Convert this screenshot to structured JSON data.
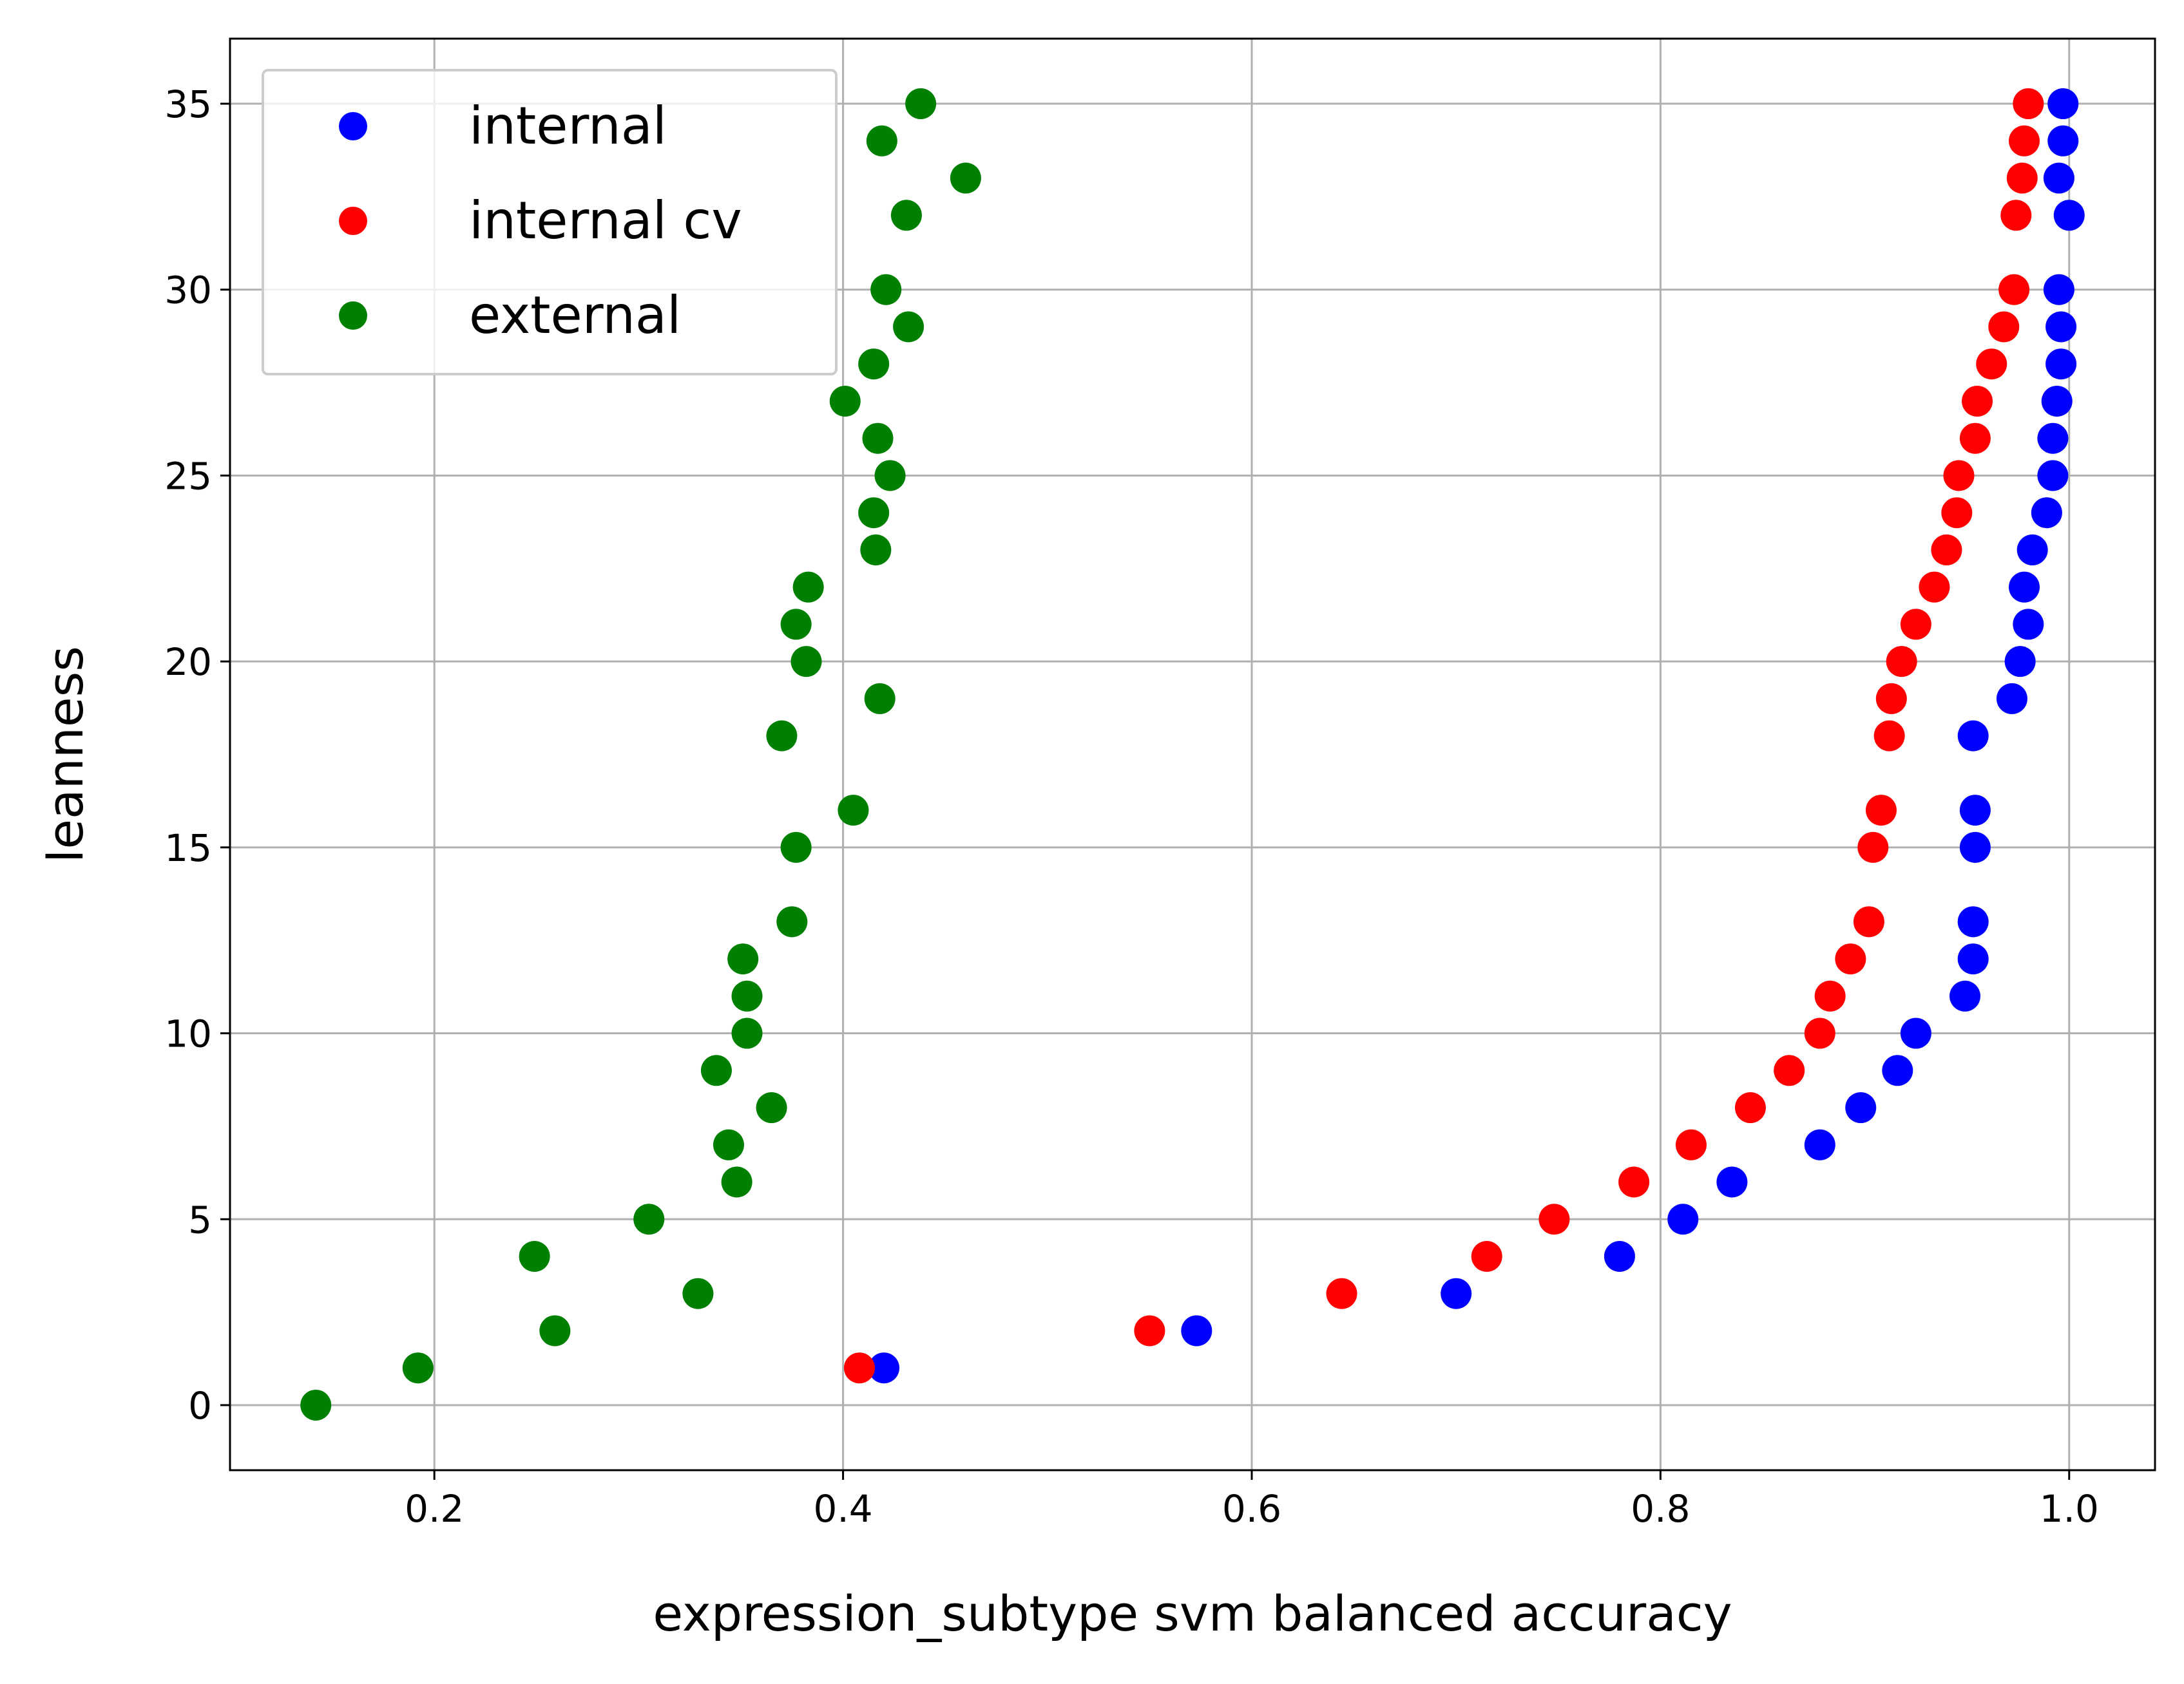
{
  "chart_data": {
    "type": "scatter",
    "xlabel": "expression_subtype svm balanced accuracy",
    "ylabel": "leanness",
    "xlim": [
      0.1,
      1.042
    ],
    "ylim": [
      -1.75,
      36.75
    ],
    "x_ticks": [
      0.2,
      0.4,
      0.6,
      0.8,
      1.0
    ],
    "x_tick_labels": [
      "0.2",
      "0.4",
      "0.6",
      "0.8",
      "1.0"
    ],
    "y_ticks": [
      0,
      5,
      10,
      15,
      20,
      25,
      30,
      35
    ],
    "y_tick_labels": [
      "0",
      "5",
      "10",
      "15",
      "20",
      "25",
      "30",
      "35"
    ],
    "grid": true,
    "legend_position": "upper left",
    "series": [
      {
        "name": "internal",
        "color": "#0000ff",
        "points": [
          [
            0.42,
            1
          ],
          [
            0.573,
            2
          ],
          [
            0.7,
            3
          ],
          [
            0.78,
            4
          ],
          [
            0.811,
            5
          ],
          [
            0.835,
            6
          ],
          [
            0.878,
            7
          ],
          [
            0.898,
            8
          ],
          [
            0.916,
            9
          ],
          [
            0.925,
            10
          ],
          [
            0.949,
            11
          ],
          [
            0.953,
            12
          ],
          [
            0.953,
            13
          ],
          [
            0.954,
            15
          ],
          [
            0.954,
            16
          ],
          [
            0.953,
            18
          ],
          [
            0.972,
            19
          ],
          [
            0.976,
            20
          ],
          [
            0.98,
            21
          ],
          [
            0.978,
            22
          ],
          [
            0.982,
            23
          ],
          [
            0.989,
            24
          ],
          [
            0.992,
            25
          ],
          [
            0.992,
            26
          ],
          [
            0.994,
            27
          ],
          [
            0.996,
            28
          ],
          [
            0.996,
            29
          ],
          [
            0.995,
            30
          ],
          [
            1.0,
            32
          ],
          [
            0.995,
            33
          ],
          [
            0.997,
            34
          ],
          [
            0.997,
            35
          ]
        ]
      },
      {
        "name": "internal cv",
        "color": "#ff0000",
        "points": [
          [
            0.408,
            1
          ],
          [
            0.55,
            2
          ],
          [
            0.644,
            3
          ],
          [
            0.715,
            4
          ],
          [
            0.748,
            5
          ],
          [
            0.787,
            6
          ],
          [
            0.815,
            7
          ],
          [
            0.844,
            8
          ],
          [
            0.863,
            9
          ],
          [
            0.878,
            10
          ],
          [
            0.883,
            11
          ],
          [
            0.893,
            12
          ],
          [
            0.902,
            13
          ],
          [
            0.904,
            15
          ],
          [
            0.908,
            16
          ],
          [
            0.912,
            18
          ],
          [
            0.913,
            19
          ],
          [
            0.918,
            20
          ],
          [
            0.925,
            21
          ],
          [
            0.934,
            22
          ],
          [
            0.94,
            23
          ],
          [
            0.945,
            24
          ],
          [
            0.946,
            25
          ],
          [
            0.954,
            26
          ],
          [
            0.955,
            27
          ],
          [
            0.962,
            28
          ],
          [
            0.968,
            29
          ],
          [
            0.973,
            30
          ],
          [
            0.974,
            32
          ],
          [
            0.977,
            33
          ],
          [
            0.978,
            34
          ],
          [
            0.98,
            35
          ]
        ]
      },
      {
        "name": "external",
        "color": "#008000",
        "points": [
          [
            0.142,
            0
          ],
          [
            0.192,
            1
          ],
          [
            0.259,
            2
          ],
          [
            0.329,
            3
          ],
          [
            0.249,
            4
          ],
          [
            0.305,
            5
          ],
          [
            0.348,
            6
          ],
          [
            0.344,
            7
          ],
          [
            0.365,
            8
          ],
          [
            0.338,
            9
          ],
          [
            0.353,
            10
          ],
          [
            0.353,
            11
          ],
          [
            0.351,
            12
          ],
          [
            0.375,
            13
          ],
          [
            0.377,
            15
          ],
          [
            0.405,
            16
          ],
          [
            0.37,
            18
          ],
          [
            0.418,
            19
          ],
          [
            0.382,
            20
          ],
          [
            0.377,
            21
          ],
          [
            0.383,
            22
          ],
          [
            0.416,
            23
          ],
          [
            0.415,
            24
          ],
          [
            0.423,
            25
          ],
          [
            0.417,
            26
          ],
          [
            0.401,
            27
          ],
          [
            0.415,
            28
          ],
          [
            0.432,
            29
          ],
          [
            0.421,
            30
          ],
          [
            0.431,
            32
          ],
          [
            0.46,
            33
          ],
          [
            0.419,
            34
          ],
          [
            0.438,
            35
          ]
        ]
      }
    ]
  }
}
